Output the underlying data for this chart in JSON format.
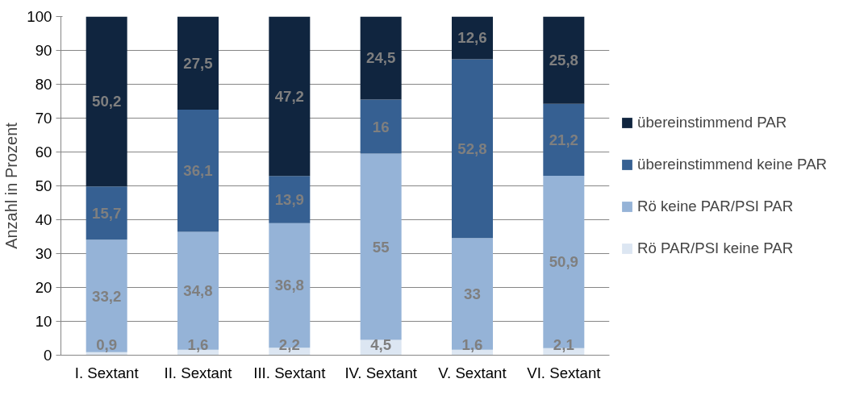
{
  "chart_data": {
    "type": "bar",
    "stacked": true,
    "ylabel": "Anzahl in Prozent",
    "categories": [
      "I. Sextant",
      "II. Sextant",
      "III. Sextant",
      "IV. Sextant",
      "V. Sextant",
      "VI. Sextant"
    ],
    "series": [
      {
        "name": "Rö PAR/PSI keine PAR",
        "color": "#dce6f2",
        "values": [
          0.9,
          1.6,
          2.2,
          4.5,
          1.6,
          2.1
        ],
        "value_labels": [
          "0,9",
          "1,6",
          "2,2",
          "4,5",
          "1,6",
          "2,1"
        ]
      },
      {
        "name": "Rö keine PAR/PSI PAR",
        "color": "#95b3d7",
        "values": [
          33.2,
          34.8,
          36.8,
          55,
          33,
          50.9
        ],
        "value_labels": [
          "33,2",
          "34,8",
          "36,8",
          "55",
          "33",
          "50,9"
        ]
      },
      {
        "name": "übereinstimmend keine PAR",
        "color": "#366092",
        "values": [
          15.7,
          36.1,
          13.9,
          16,
          52.8,
          21.2
        ],
        "value_labels": [
          "15,7",
          "36,1",
          "13,9",
          "16",
          "52,8",
          "21,2"
        ]
      },
      {
        "name": "übereinstimmend PAR",
        "color": "#10253f",
        "values": [
          50.2,
          27.5,
          47.2,
          24.5,
          12.6,
          25.8
        ],
        "value_labels": [
          "50,2",
          "27,5",
          "47,2",
          "24,5",
          "12,6",
          "25,8"
        ]
      }
    ],
    "ylim": [
      0,
      100
    ],
    "yticks": [
      0,
      10,
      20,
      30,
      40,
      50,
      60,
      70,
      80,
      90,
      100
    ],
    "grid": "y",
    "legend": "right"
  }
}
